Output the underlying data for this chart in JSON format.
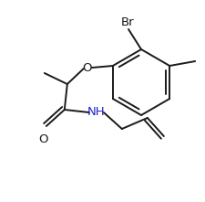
{
  "bg_color": "#ffffff",
  "line_color": "#1a1a1a",
  "label_color": "#1a1a1a",
  "nh_color": "#2222cc",
  "br_label": "Br",
  "o_label": "O",
  "nh_label": "NH",
  "o2_label": "O",
  "figsize": [
    2.26,
    2.21
  ],
  "dpi": 100,
  "lw": 1.4
}
